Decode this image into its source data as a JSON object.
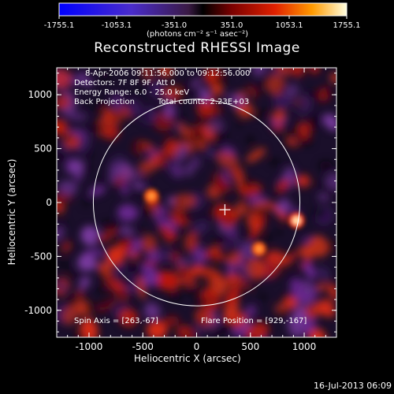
{
  "chart_data": {
    "type": "heatmap",
    "title": "Reconstructed RHESSI Image",
    "xlabel": "Heliocentric X (arcsec)",
    "ylabel": "Heliocentric Y (arcsec)",
    "xlim": [
      -1300,
      1300
    ],
    "ylim": [
      -1250,
      1250
    ],
    "x_ticks": [
      -1000,
      -500,
      0,
      500,
      1000
    ],
    "y_ticks": [
      -1000,
      -500,
      0,
      500,
      1000
    ],
    "colorbar": {
      "range": [
        -1755.1,
        1755.1
      ],
      "ticks": [
        "-1755.1",
        "-1053.1",
        "-351.0",
        "351.0",
        "1053.1",
        "1755.1"
      ],
      "units_label": "(photons cm⁻² s⁻¹ asec⁻²)"
    },
    "annotations": {
      "time_range": "8-Apr-2006 09:11:56.000 to 09:12:56.000",
      "detectors": "Detectors: 7F 8F 9F, Att 0",
      "energy_range": "Energy Range: 6.0 - 25.0 keV",
      "method": "Back Projection",
      "total_counts": "Total counts: 2.23E+03",
      "spin_axis": "Spin Axis = [263,-67]",
      "flare_position": "Flare Position = [929,-167]"
    },
    "solar_limb_radius_arcsec": 960,
    "spin_axis_xy": [
      263,
      -67
    ],
    "flare_xy": [
      929,
      -167
    ]
  },
  "footer_date": "16-Jul-2013 06:09"
}
